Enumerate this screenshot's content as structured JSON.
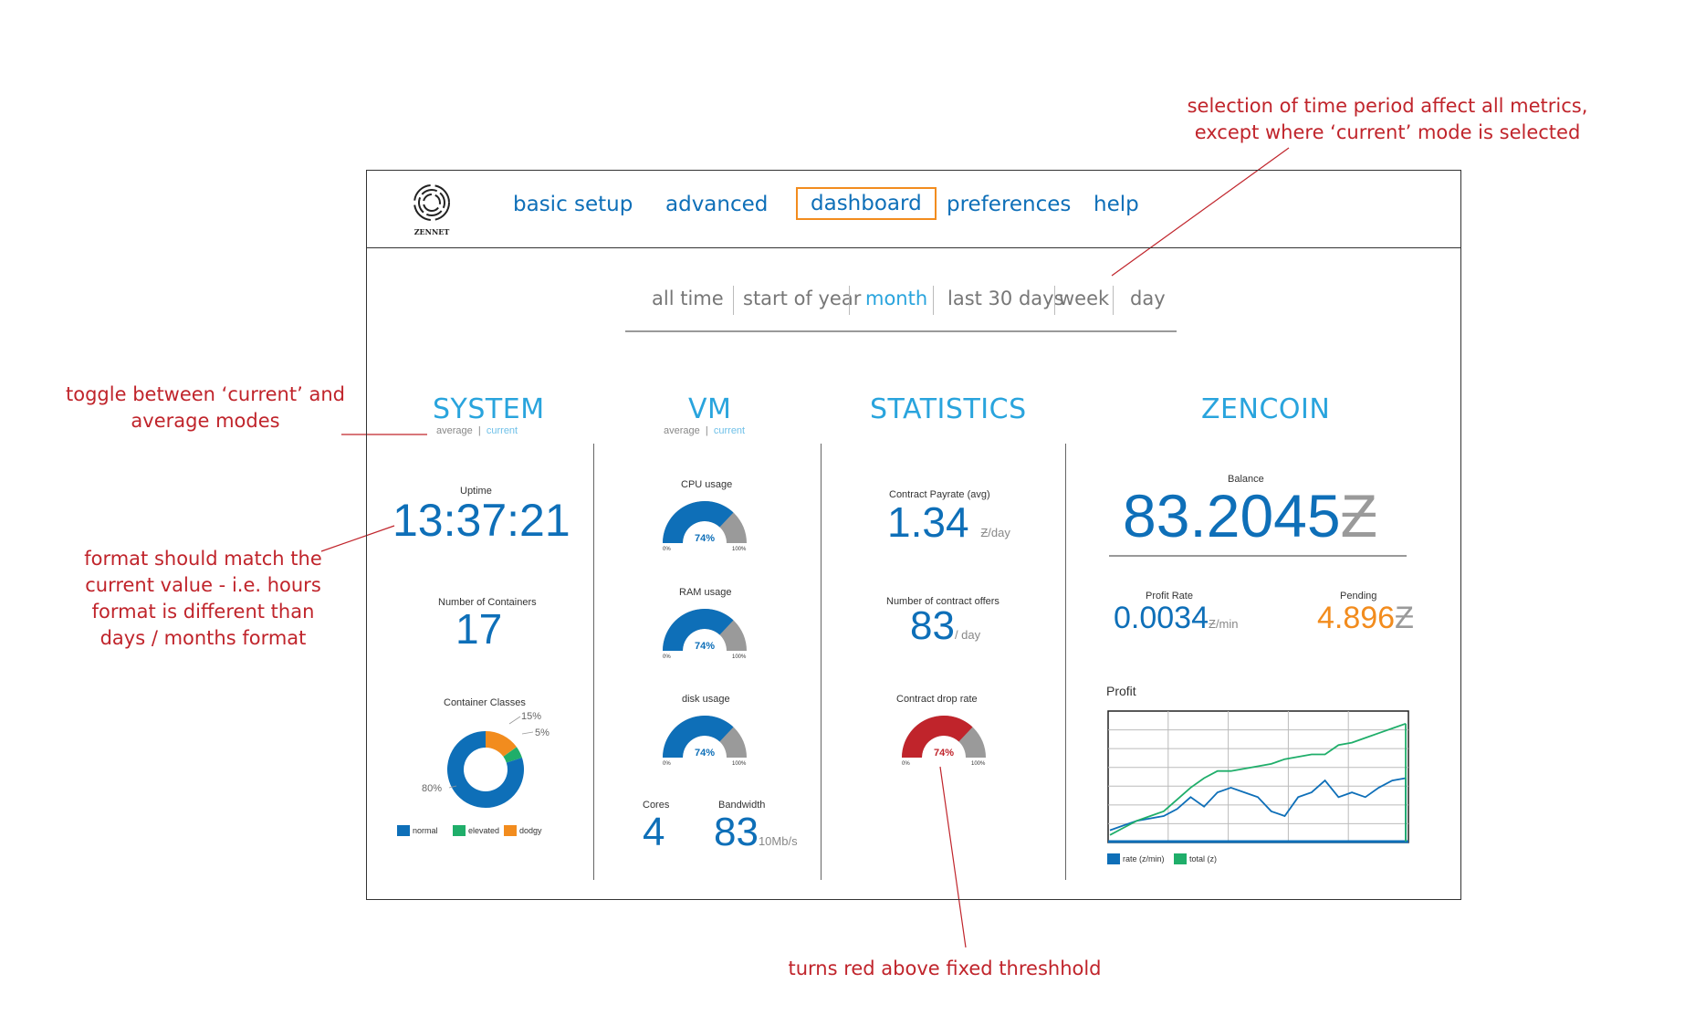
{
  "annotations": {
    "period_note_line1": "selection of time period affect all metrics,",
    "period_note_line2": "except where ‘current’ mode is selected",
    "toggle_note_line1": "toggle between ‘current’ and",
    "toggle_note_line2": "average modes",
    "format_note_line1": "format should match the",
    "format_note_line2": "current value - i.e. hours",
    "format_note_line3": "format is different than",
    "format_note_line4": "days / months format",
    "threshold_note": "turns red above fixed threshhold"
  },
  "header": {
    "logo_text": "ZENNET",
    "nav": [
      "basic setup",
      "advanced",
      "dashboard",
      "preferences",
      "help"
    ],
    "active_nav": "dashboard"
  },
  "periods": [
    "all time",
    "start of  year",
    "month",
    "last 30 days",
    "week",
    "day"
  ],
  "active_period": "month",
  "system": {
    "title": "SYSTEM",
    "toggle_average": "average",
    "toggle_sep": "|",
    "toggle_current": "current",
    "uptime_label": "Uptime",
    "uptime_value": "13:37:21",
    "containers_label": "Number of Containers",
    "containers_value": "17",
    "classes_label": "Container Classes",
    "classes": [
      {
        "name": "normal",
        "percent": 80,
        "label": "80%",
        "color": "#0e6fb8"
      },
      {
        "name": "elevated",
        "percent": 5,
        "label": "5%",
        "color": "#1fae6a"
      },
      {
        "name": "dodgy",
        "percent": 15,
        "label": "15%",
        "color": "#f28c1e"
      }
    ]
  },
  "vm": {
    "title": "VM",
    "toggle_average": "average",
    "toggle_sep": "|",
    "toggle_current": "current",
    "gauges": [
      {
        "label": "CPU usage",
        "value": 74,
        "text": "74%",
        "min": "0%",
        "max": "100%"
      },
      {
        "label": "RAM usage",
        "value": 74,
        "text": "74%",
        "min": "0%",
        "max": "100%"
      },
      {
        "label": "disk usage",
        "value": 74,
        "text": "74%",
        "min": "0%",
        "max": "100%"
      }
    ],
    "cores_label": "Cores",
    "cores_value": "4",
    "bandwidth_label": "Bandwidth",
    "bandwidth_value": "83",
    "bandwidth_unit": "10Mb/s"
  },
  "statistics": {
    "title": "STATISTICS",
    "payrate_label": "Contract Payrate (avg)",
    "payrate_value": "1.34",
    "payrate_unit": "Ƶ/day",
    "offers_label": "Number of contract offers",
    "offers_value": "83",
    "offers_unit": "/ day",
    "drop_label": "Contract drop rate",
    "drop_value": 74,
    "drop_text": "74%",
    "drop_min": "0%",
    "drop_max": "100%"
  },
  "zencoin": {
    "title": "ZENCOIN",
    "balance_label": "Balance",
    "balance_value": "83.2045",
    "currency_symbol": "Ƶ",
    "profit_rate_label": "Profit Rate",
    "profit_rate_value": "0.0034",
    "profit_rate_unit": "Ƶ/min",
    "pending_label": "Pending",
    "pending_value": "4.896",
    "profit_chart_label": "Profit",
    "legend_rate": "rate (z/min)",
    "legend_total": "total (z)"
  },
  "colors": {
    "blue": "#0e6fb8",
    "light_blue": "#29a4dd",
    "orange": "#f28c1e",
    "green": "#1fae6a",
    "red": "#c0242b",
    "gray": "#9a9a9a"
  },
  "chart_data": {
    "type": "line",
    "title": "Profit",
    "series": [
      {
        "name": "rate (z/min)",
        "values": [
          4,
          6,
          8,
          9,
          10,
          13,
          18,
          14,
          20,
          22,
          20,
          18,
          12,
          10,
          18,
          20,
          25,
          18,
          20,
          18,
          22,
          25,
          26
        ]
      },
      {
        "name": "total (z)",
        "values": [
          2,
          5,
          8,
          10,
          12,
          17,
          22,
          26,
          29,
          29,
          30,
          31,
          32,
          34,
          35,
          36,
          36,
          40,
          41,
          43,
          45,
          47,
          49
        ]
      }
    ],
    "grid": true,
    "legend_position": "bottom-left"
  }
}
